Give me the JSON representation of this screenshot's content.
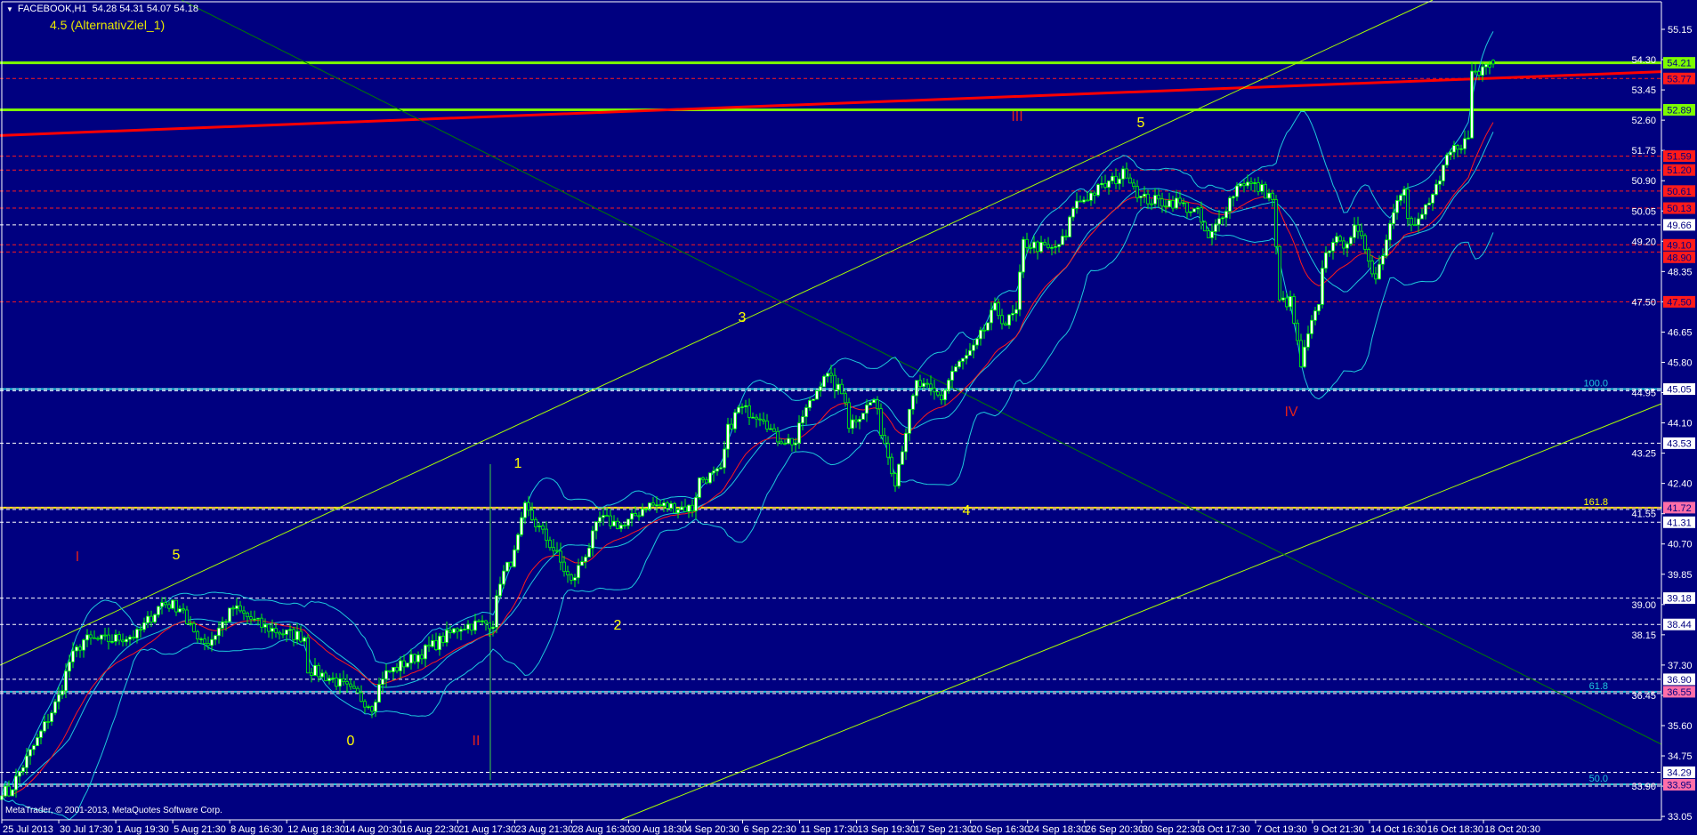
{
  "window": {
    "symbol_header": "FACEBOOK,H1  54.28 54.31 54.07 54.18",
    "menu_icon": "triangle-down-icon",
    "indicator_label": "4.5 (AlternativZiel_1)",
    "copyright": "MetaTrader, © 2001-2013, MetaQuotes Software Corp."
  },
  "colors": {
    "background": "#000080",
    "axis": "#ffffff",
    "candle_outline": "#00ff00",
    "candle_bull_fill": "#ffffff",
    "candle_bear_fill": "#000080",
    "bollinger": "#1ec8dc",
    "moving_average": "#ff1a1a",
    "level_lime": "#7cfc00",
    "level_red": "#ff1a1a",
    "level_white": "#ffffff",
    "level_pink": "#ff6ea8",
    "fib_cyan": "#1ec8dc",
    "fib_yellow": "#ffff00",
    "trend_channel": "#a8ff00",
    "trend_dark": "#007a00",
    "trend_red": "#ff0000",
    "wave_yellow": "#ffff00",
    "wave_red": "#e0201c"
  },
  "chart_data": {
    "type": "candlestick",
    "symbol": "FACEBOOK",
    "timeframe": "H1",
    "last_bar": {
      "open": 54.28,
      "high": 54.31,
      "low": 54.07,
      "close": 54.18
    },
    "ylim": [
      33.05,
      55.15
    ],
    "price_axis_ticks": [
      "55.15",
      "54.30",
      "53.45",
      "52.60",
      "51.75",
      "50.90",
      "50.05",
      "49.20",
      "48.35",
      "47.50",
      "46.65",
      "45.80",
      "44.95",
      "44.10",
      "43.25",
      "42.40",
      "41.55",
      "40.70",
      "39.85",
      "39.00",
      "38.15",
      "37.30",
      "36.45",
      "35.60",
      "34.75",
      "33.90",
      "33.05"
    ],
    "time_axis_ticks": [
      "25 Jul 2013",
      "30 Jul 17:30",
      "1 Aug 19:30",
      "5 Aug 21:30",
      "8 Aug 16:30",
      "12 Aug 18:30",
      "14 Aug 20:30",
      "16 Aug 22:30",
      "21 Aug 17:30",
      "23 Aug 21:30",
      "28 Aug 16:30",
      "30 Aug 18:30",
      "4 Sep 20:30",
      "6 Sep 22:30",
      "11 Sep 17:30",
      "13 Sep 19:30",
      "17 Sep 21:30",
      "20 Sep 16:30",
      "24 Sep 18:30",
      "26 Sep 20:30",
      "30 Sep 22:30",
      "3 Oct 17:30",
      "7 Oct 19:30",
      "9 Oct 21:30",
      "14 Oct 16:30",
      "16 Oct 18:30",
      "18 Oct 20:30"
    ],
    "close_path": [
      [
        0,
        33.8
      ],
      [
        2,
        33.7
      ],
      [
        5,
        34.3
      ],
      [
        10,
        35.2
      ],
      [
        16,
        36.4
      ],
      [
        19,
        37.4
      ],
      [
        23,
        38.0
      ],
      [
        30,
        38.0
      ],
      [
        38,
        38.15
      ],
      [
        45,
        39.05
      ],
      [
        51,
        38.9
      ],
      [
        52,
        38.4
      ],
      [
        58,
        37.9
      ],
      [
        65,
        38.9
      ],
      [
        73,
        38.4
      ],
      [
        79,
        38.2
      ],
      [
        85,
        38.1
      ],
      [
        86,
        37.2
      ],
      [
        93,
        36.9
      ],
      [
        99,
        36.5
      ],
      [
        104,
        36.15
      ],
      [
        107,
        37.0
      ],
      [
        114,
        37.4
      ],
      [
        122,
        37.9
      ],
      [
        129,
        38.4
      ],
      [
        138,
        38.5
      ],
      [
        140,
        39.7
      ],
      [
        144,
        40.4
      ],
      [
        147,
        41.7
      ],
      [
        155,
        40.55
      ],
      [
        160,
        39.6
      ],
      [
        165,
        40.65
      ],
      [
        168,
        41.4
      ],
      [
        175,
        41.2
      ],
      [
        181,
        41.8
      ],
      [
        194,
        41.7
      ],
      [
        196,
        42.5
      ],
      [
        202,
        42.7
      ],
      [
        204,
        43.9
      ],
      [
        207,
        44.5
      ],
      [
        214,
        44.3
      ],
      [
        217,
        43.7
      ],
      [
        223,
        43.55
      ],
      [
        225,
        44.3
      ],
      [
        228,
        44.8
      ],
      [
        231,
        45.5
      ],
      [
        237,
        44.8
      ],
      [
        238,
        44.05
      ],
      [
        245,
        44.75
      ],
      [
        247,
        43.9
      ],
      [
        251,
        42.5
      ],
      [
        254,
        43.9
      ],
      [
        257,
        45.2
      ],
      [
        264,
        44.8
      ],
      [
        267,
        45.55
      ],
      [
        273,
        46.15
      ],
      [
        279,
        47.3
      ],
      [
        282,
        46.9
      ],
      [
        285,
        47.2
      ],
      [
        287,
        49.15
      ],
      [
        295,
        48.95
      ],
      [
        299,
        49.3
      ],
      [
        301,
        50.2
      ],
      [
        308,
        50.65
      ],
      [
        313,
        50.95
      ],
      [
        316,
        51.15
      ],
      [
        320,
        50.4
      ],
      [
        326,
        50.3
      ],
      [
        330,
        50.3
      ],
      [
        336,
        49.98
      ],
      [
        339,
        49.2
      ],
      [
        344,
        50.2
      ],
      [
        348,
        50.9
      ],
      [
        354,
        50.65
      ],
      [
        357,
        50.4
      ],
      [
        358,
        48.95
      ],
      [
        359,
        47.5
      ],
      [
        362,
        47.5
      ],
      [
        365,
        45.7
      ],
      [
        368,
        46.9
      ],
      [
        370,
        47.3
      ],
      [
        371,
        48.55
      ],
      [
        374,
        49.3
      ],
      [
        376,
        49.05
      ],
      [
        380,
        49.5
      ],
      [
        383,
        49.05
      ],
      [
        386,
        48.15
      ],
      [
        389,
        49.3
      ],
      [
        392,
        50.5
      ],
      [
        394,
        50.8
      ],
      [
        395,
        49.8
      ],
      [
        397,
        49.55
      ],
      [
        400,
        50.15
      ],
      [
        404,
        50.8
      ],
      [
        406,
        51.55
      ],
      [
        409,
        51.9
      ],
      [
        412,
        52.05
      ],
      [
        413,
        54.0
      ],
      [
        415,
        53.9
      ],
      [
        417,
        54.3
      ],
      [
        419,
        54.18
      ]
    ],
    "levels": [
      {
        "label": "54.21",
        "price": 54.21,
        "kind": "lime",
        "style": "solid"
      },
      {
        "label": "53.77",
        "price": 53.77,
        "kind": "red",
        "style": "dashed"
      },
      {
        "label": "52.89",
        "price": 52.89,
        "kind": "lime",
        "style": "solid"
      },
      {
        "label": "51.59",
        "price": 51.59,
        "kind": "red",
        "style": "dashed"
      },
      {
        "label": "51.20",
        "price": 51.2,
        "kind": "red",
        "style": "dashed"
      },
      {
        "label": "50.61",
        "price": 50.61,
        "kind": "red",
        "style": "dashed"
      },
      {
        "label": "50.13",
        "price": 50.13,
        "kind": "red",
        "style": "dashed"
      },
      {
        "label": "49.66",
        "price": 49.66,
        "kind": "white",
        "style": "dashed"
      },
      {
        "label": "49.10",
        "price": 49.1,
        "kind": "red",
        "style": "dashed"
      },
      {
        "label": "48.90",
        "price": 48.9,
        "kind": "red",
        "style": "dashed"
      },
      {
        "label": "47.50",
        "price": 47.5,
        "kind": "red",
        "style": "dashed"
      },
      {
        "label": "45.05",
        "price": 45.05,
        "kind": "white",
        "style": "dashed"
      },
      {
        "label": "43.53",
        "price": 43.53,
        "kind": "white",
        "style": "dashed"
      },
      {
        "label": "41.72",
        "price": 41.72,
        "kind": "pink",
        "style": "dashed"
      },
      {
        "label": "41.31",
        "price": 41.31,
        "kind": "white",
        "style": "dashed"
      },
      {
        "label": "39.18",
        "price": 39.18,
        "kind": "white",
        "style": "dashed"
      },
      {
        "label": "38.44",
        "price": 38.44,
        "kind": "white",
        "style": "dashed"
      },
      {
        "label": "36.90",
        "price": 36.9,
        "kind": "white",
        "style": "dashed"
      },
      {
        "label": "36.55",
        "price": 36.55,
        "kind": "pink",
        "style": "dashed"
      },
      {
        "label": "34.29",
        "price": 34.29,
        "kind": "white",
        "style": "dashed"
      },
      {
        "label": "33.95",
        "price": 33.95,
        "kind": "pink",
        "style": "dashed"
      }
    ],
    "fib_levels": [
      {
        "label": "100.0",
        "price": 45.05,
        "kind": "cyan"
      },
      {
        "label": "161.8",
        "price": 41.72,
        "kind": "yellow"
      },
      {
        "label": "61.8",
        "price": 36.55,
        "kind": "cyan"
      },
      {
        "label": "50.0",
        "price": 33.95,
        "kind": "cyan"
      }
    ],
    "wave_labels": [
      {
        "text": "I",
        "kind": "red"
      },
      {
        "text": "5",
        "kind": "yellow"
      },
      {
        "text": "0",
        "kind": "yellow"
      },
      {
        "text": "II",
        "kind": "red"
      },
      {
        "text": "1",
        "kind": "yellow"
      },
      {
        "text": "2",
        "kind": "yellow"
      },
      {
        "text": "3",
        "kind": "yellow"
      },
      {
        "text": "4",
        "kind": "yellow"
      },
      {
        "text": "III",
        "kind": "red"
      },
      {
        "text": "5",
        "kind": "yellow"
      },
      {
        "text": "IV",
        "kind": "red"
      }
    ]
  }
}
